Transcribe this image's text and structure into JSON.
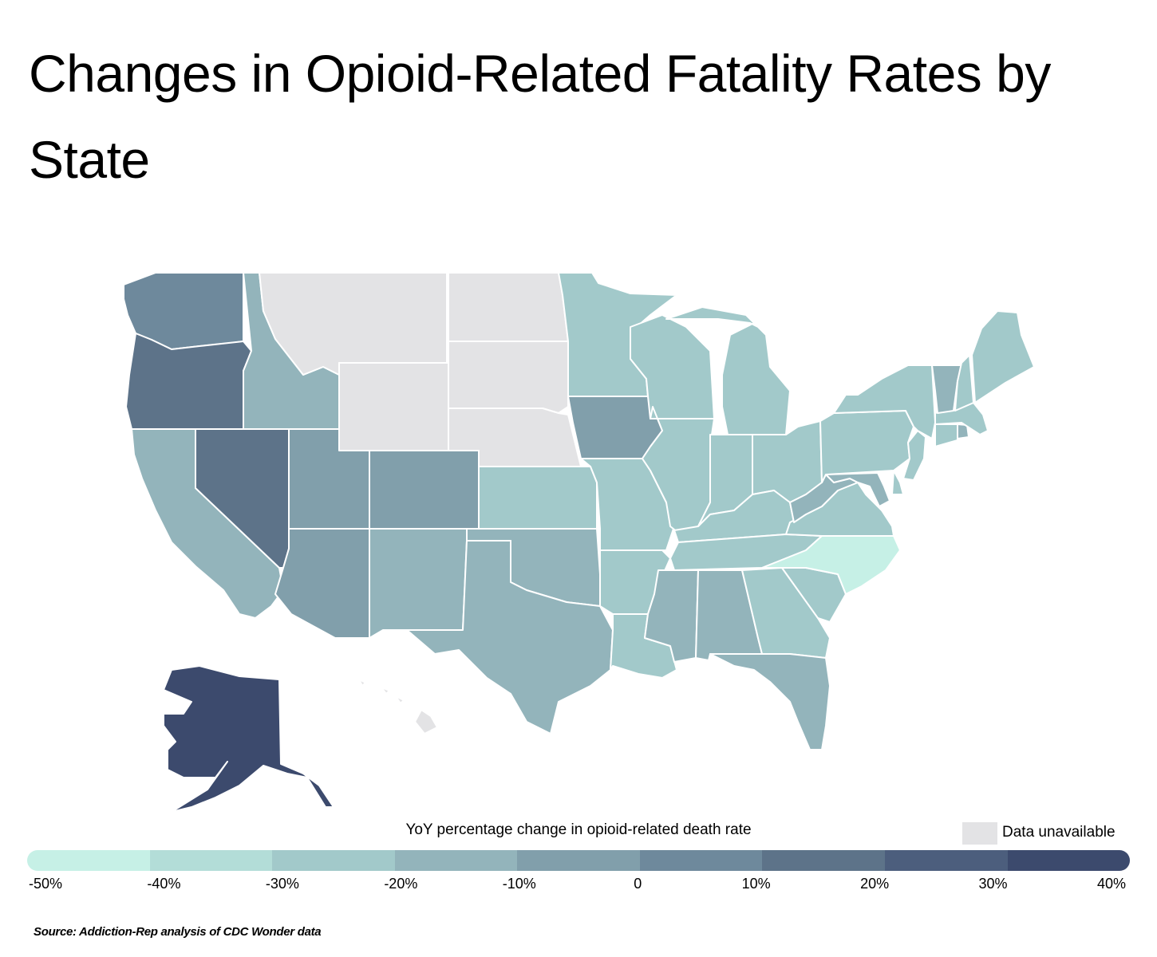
{
  "title": "Changes in Opioid-Related Fatality Rates by State",
  "legend": {
    "title": "YoY percentage change in opioid-related death rate",
    "unavailable_label": "Data unavailable",
    "unavailable_color": "#e3e3e5",
    "ticks": [
      "-50%",
      "-40%",
      "-30%",
      "-20%",
      "-10%",
      "0",
      "10%",
      "20%",
      "30%",
      "40%"
    ],
    "bins": [
      {
        "range": "-50% to -40%",
        "color": "#c6f0e6"
      },
      {
        "range": "-40% to -30%",
        "color": "#b3ddd8"
      },
      {
        "range": "-30% to -20%",
        "color": "#a2c9ca"
      },
      {
        "range": "-20% to -10%",
        "color": "#93b4bb"
      },
      {
        "range": "-10% to 0",
        "color": "#819fab"
      },
      {
        "range": "0 to 10%",
        "color": "#6e899c"
      },
      {
        "range": "10% to 20%",
        "color": "#5d7389"
      },
      {
        "range": "20% to 30%",
        "color": "#4c5e7d"
      },
      {
        "range": "30% to 40%",
        "color": "#3c4a6d"
      }
    ]
  },
  "source": "Source: Addiction-Rep analysis of CDC Wonder data",
  "chart_data": {
    "type": "heatmap",
    "subtype": "choropleth",
    "title": "Changes in Opioid-Related Fatality Rates by State",
    "value_label": "YoY percentage change in opioid-related death rate",
    "scale_range": [
      -50,
      40
    ],
    "states": [
      {
        "state": "WA",
        "bin": "0 to 10%"
      },
      {
        "state": "OR",
        "bin": "10% to 20%"
      },
      {
        "state": "CA",
        "bin": "-20% to -10%"
      },
      {
        "state": "NV",
        "bin": "10% to 20%"
      },
      {
        "state": "ID",
        "bin": "-20% to -10%"
      },
      {
        "state": "MT",
        "bin": "Data unavailable"
      },
      {
        "state": "WY",
        "bin": "Data unavailable"
      },
      {
        "state": "UT",
        "bin": "-10% to 0"
      },
      {
        "state": "AZ",
        "bin": "-10% to 0"
      },
      {
        "state": "CO",
        "bin": "-10% to 0"
      },
      {
        "state": "NM",
        "bin": "-20% to -10%"
      },
      {
        "state": "ND",
        "bin": "Data unavailable"
      },
      {
        "state": "SD",
        "bin": "Data unavailable"
      },
      {
        "state": "NE",
        "bin": "Data unavailable"
      },
      {
        "state": "KS",
        "bin": "-30% to -20%"
      },
      {
        "state": "OK",
        "bin": "-20% to -10%"
      },
      {
        "state": "TX",
        "bin": "-20% to -10%"
      },
      {
        "state": "MN",
        "bin": "-30% to -20%"
      },
      {
        "state": "IA",
        "bin": "-10% to 0"
      },
      {
        "state": "MO",
        "bin": "-30% to -20%"
      },
      {
        "state": "AR",
        "bin": "-30% to -20%"
      },
      {
        "state": "LA",
        "bin": "-30% to -20%"
      },
      {
        "state": "WI",
        "bin": "-30% to -20%"
      },
      {
        "state": "IL",
        "bin": "-30% to -20%"
      },
      {
        "state": "MI",
        "bin": "-30% to -20%"
      },
      {
        "state": "IN",
        "bin": "-30% to -20%"
      },
      {
        "state": "OH",
        "bin": "-30% to -20%"
      },
      {
        "state": "KY",
        "bin": "-30% to -20%"
      },
      {
        "state": "TN",
        "bin": "-30% to -20%"
      },
      {
        "state": "MS",
        "bin": "-20% to -10%"
      },
      {
        "state": "AL",
        "bin": "-20% to -10%"
      },
      {
        "state": "GA",
        "bin": "-30% to -20%"
      },
      {
        "state": "FL",
        "bin": "-20% to -10%"
      },
      {
        "state": "SC",
        "bin": "-30% to -20%"
      },
      {
        "state": "NC",
        "bin": "-50% to -40%"
      },
      {
        "state": "VA",
        "bin": "-30% to -20%"
      },
      {
        "state": "WV",
        "bin": "-20% to -10%"
      },
      {
        "state": "MD",
        "bin": "-20% to -10%"
      },
      {
        "state": "DE",
        "bin": "-30% to -20%"
      },
      {
        "state": "PA",
        "bin": "-30% to -20%"
      },
      {
        "state": "NJ",
        "bin": "-30% to -20%"
      },
      {
        "state": "NY",
        "bin": "-30% to -20%"
      },
      {
        "state": "CT",
        "bin": "-30% to -20%"
      },
      {
        "state": "RI",
        "bin": "-20% to -10%"
      },
      {
        "state": "MA",
        "bin": "-30% to -20%"
      },
      {
        "state": "VT",
        "bin": "-20% to -10%"
      },
      {
        "state": "NH",
        "bin": "-30% to -20%"
      },
      {
        "state": "ME",
        "bin": "-30% to -20%"
      },
      {
        "state": "AK",
        "bin": "30% to 40%"
      },
      {
        "state": "HI",
        "bin": "Data unavailable"
      }
    ]
  }
}
